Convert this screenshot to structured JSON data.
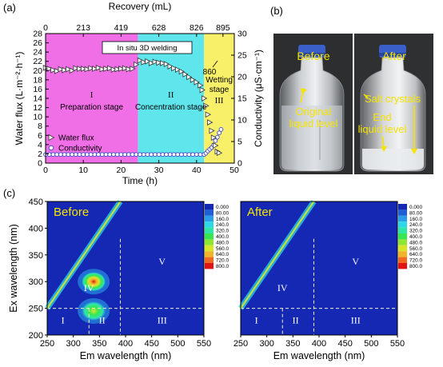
{
  "chart_data": [
    {
      "panel": "(a)",
      "type": "scatter",
      "xlabel": "Time (h)",
      "top_xlabel": "Recovery (mL)",
      "ylabel": "Water flux (L·m⁻²·h⁻¹)",
      "ylabel_right": "Conductivity (μS·cm⁻¹)",
      "xlim": [
        0,
        50
      ],
      "ylim": [
        0,
        28
      ],
      "ylim_right": [
        0,
        30
      ],
      "xticks": [
        "0",
        "10",
        "20",
        "30",
        "40",
        "50"
      ],
      "yticks": [
        "0",
        "2",
        "4",
        "6",
        "8",
        "10",
        "12",
        "14",
        "16",
        "18",
        "20",
        "22",
        "24",
        "26",
        "28"
      ],
      "yticks_right": [
        "0",
        "5",
        "10",
        "15",
        "20",
        "25",
        "30"
      ],
      "top_ticks": [
        {
          "t": 0,
          "label": "0"
        },
        {
          "t": 10,
          "label": "213"
        },
        {
          "t": 20,
          "label": "419"
        },
        {
          "t": 30,
          "label": "628"
        },
        {
          "t": 40,
          "label": "826"
        },
        {
          "t": 47,
          "label": "895"
        }
      ],
      "regions": [
        {
          "x0": 0,
          "x1": 24.5,
          "color": "#f06ee6",
          "roman": "I",
          "label": "Preparation stage"
        },
        {
          "x0": 24.5,
          "x1": 42,
          "color": "#5ee6ec",
          "roman": "II",
          "label": "Concentration stage"
        },
        {
          "x0": 42,
          "x1": 50,
          "color": "#f9f06a",
          "roman": "III",
          "label": "Wetting\nstage"
        }
      ],
      "annotations": [
        {
          "text": "In situ 3D welding",
          "boxed": true
        },
        {
          "text": "860"
        }
      ],
      "legend_position": "lower-left",
      "series": [
        {
          "name": "Water flux",
          "marker": "triangle-right",
          "axis": "left",
          "x": [
            0,
            1,
            2,
            3,
            4,
            5,
            6,
            7,
            8,
            9,
            10,
            11,
            12,
            13,
            14,
            15,
            16,
            17,
            18,
            19,
            20,
            21,
            22,
            23,
            24,
            25,
            26,
            27,
            28,
            29,
            30,
            31,
            32,
            33,
            34,
            35,
            36,
            37,
            38,
            39,
            40,
            41,
            41.5,
            42,
            42.5,
            43,
            43.5,
            44,
            44.5,
            45,
            45.5,
            46
          ],
          "y": [
            20.6,
            20.4,
            20.1,
            19.9,
            20.3,
            20.1,
            20.3,
            20.0,
            20.5,
            20.4,
            20.4,
            20.3,
            20.5,
            20.4,
            20.6,
            20.3,
            20.4,
            20.5,
            20.2,
            20.3,
            20.4,
            20.5,
            20.3,
            20.4,
            21.3,
            22.2,
            21.8,
            22.0,
            21.6,
            21.9,
            21.7,
            21.6,
            21.4,
            20.9,
            20.5,
            20.2,
            19.8,
            19.2,
            18.6,
            18.0,
            17.5,
            16.8,
            15.8,
            14.0,
            12.4,
            10.5,
            8.8,
            7.0,
            5.5,
            3.8,
            2.5,
            2.2
          ]
        },
        {
          "name": "Conductivity",
          "marker": "circle",
          "axis": "right",
          "x": [
            0,
            1,
            2,
            3,
            4,
            5,
            6,
            7,
            8,
            9,
            10,
            11,
            12,
            13,
            14,
            15,
            16,
            17,
            18,
            19,
            20,
            21,
            22,
            23,
            24,
            25,
            26,
            27,
            28,
            29,
            30,
            31,
            32,
            33,
            34,
            35,
            36,
            37,
            38,
            39,
            40,
            41,
            42,
            42.5,
            43,
            43.5,
            44,
            44.5,
            45,
            45.5,
            46,
            46.5
          ],
          "y": [
            2,
            2,
            2,
            2,
            2,
            2,
            2,
            2,
            2,
            2,
            2,
            2,
            2,
            2,
            2,
            2,
            2,
            2,
            2,
            2,
            2,
            2,
            2,
            2,
            2,
            2,
            2,
            2,
            2,
            2,
            2,
            2,
            2,
            2,
            2,
            2,
            2,
            2,
            2,
            2,
            2,
            2,
            2,
            2.3,
            2.8,
            3.2,
            3.6,
            4.2,
            5.2,
            6.0,
            7.0,
            7.8
          ]
        }
      ]
    },
    {
      "panel": "(c)",
      "type": "heatmap",
      "title": "Before",
      "xlabel": "Em wavelength (nm)",
      "ylabel": "Ex wavelength (nm)",
      "xlim": [
        250,
        550
      ],
      "ylim": [
        200,
        450
      ],
      "xticks": [
        "250",
        "300",
        "350",
        "400",
        "450",
        "500",
        "550"
      ],
      "yticks": [
        "200",
        "250",
        "300",
        "350",
        "400",
        "450"
      ],
      "region_labels": [
        "I",
        "II",
        "III",
        "IV",
        "V"
      ],
      "colorbar": [
        "0.000",
        "80.00",
        "160.0",
        "240.0",
        "320.0",
        "400.0",
        "480.0",
        "560.0",
        "640.0",
        "720.0",
        "800.0"
      ],
      "colorbar_colors": [
        "#1428b4",
        "#1f5fd8",
        "#2a9ee8",
        "#2ed7e6",
        "#2fe6a8",
        "#37e652",
        "#8ee632",
        "#d8e62a",
        "#f0b42a",
        "#f06a22",
        "#e01414"
      ],
      "peaks": [
        {
          "em": 339,
          "ex": 300,
          "intensity": 800
        },
        {
          "em": 339,
          "ex": 245,
          "intensity": 550
        }
      ]
    },
    {
      "panel": "(c)",
      "type": "heatmap",
      "title": "After",
      "xlabel": "Em wavelength (nm)",
      "xlim": [
        250,
        550
      ],
      "ylim": [
        200,
        450
      ],
      "xticks": [
        "250",
        "300",
        "350",
        "400",
        "450",
        "500",
        "550"
      ],
      "region_labels": [
        "I",
        "II",
        "III",
        "IV",
        "V"
      ],
      "colorbar": [
        "0.000",
        "80.00",
        "160.0",
        "240.0",
        "320.0",
        "400.0",
        "480.0",
        "560.0",
        "640.0",
        "720.0",
        "800.0"
      ],
      "colorbar_colors": [
        "#1428b4",
        "#1f5fd8",
        "#2a9ee8",
        "#2ed7e6",
        "#2fe6a8",
        "#37e652",
        "#8ee632",
        "#d8e62a",
        "#f0b42a",
        "#f06a22",
        "#e01414"
      ],
      "peaks": []
    }
  ],
  "panel_b": {
    "label": "(b)",
    "before": {
      "title": "Before",
      "note": "Original\nliquid level"
    },
    "after": {
      "title": "After",
      "note1": "Salt crystals",
      "note2": "End\nliquid level"
    }
  },
  "colors": {
    "flux": "#ffffff",
    "bottle_cap": "#3a5fc8",
    "annot": "#f5e400"
  }
}
